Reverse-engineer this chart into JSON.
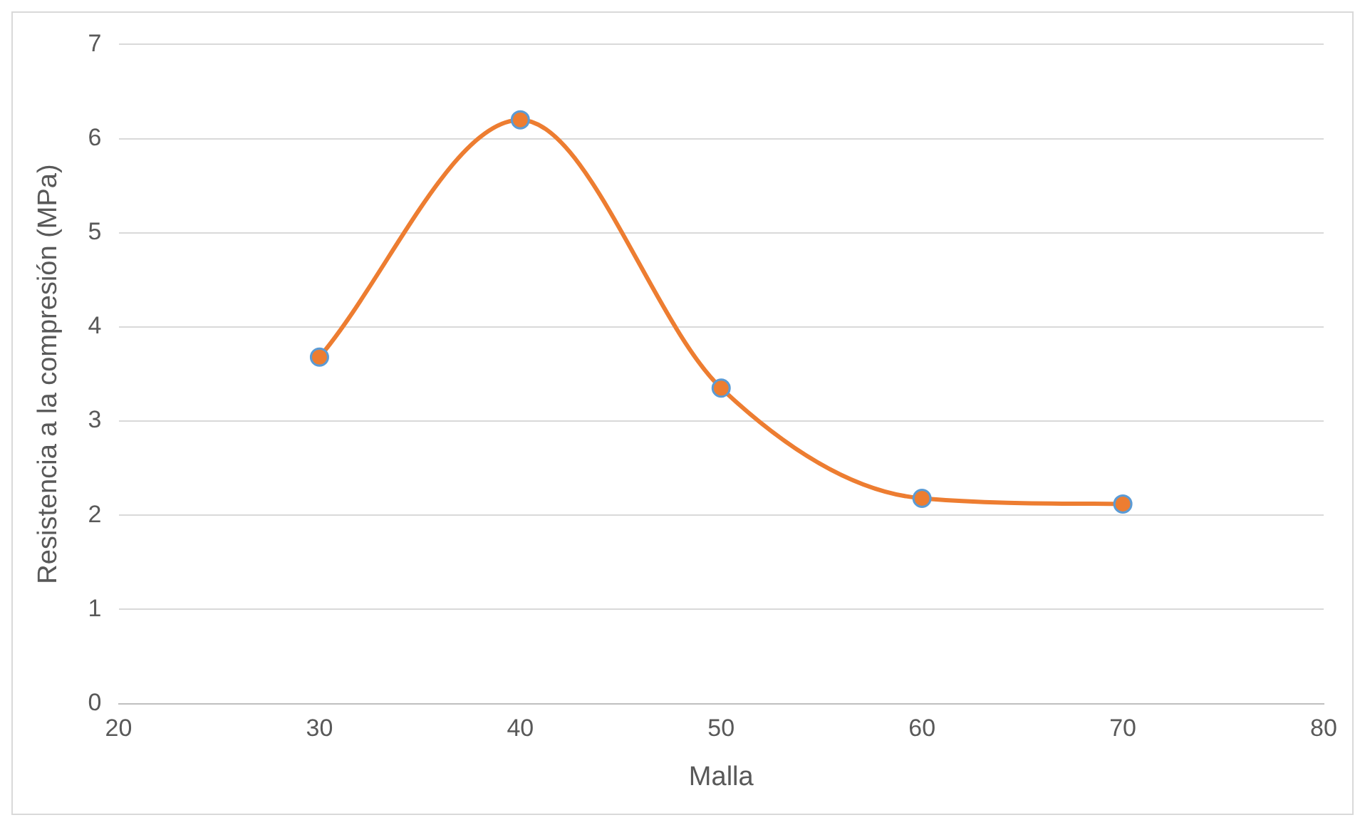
{
  "chart_data": {
    "type": "line",
    "xlabel": "Malla",
    "ylabel": "Resistencia a la compresión (MPa)",
    "x": [
      30,
      40,
      50,
      60,
      70
    ],
    "series": [
      {
        "color": "#ed7d31",
        "values": [
          3.68,
          6.2,
          3.35,
          2.18,
          2.12
        ]
      }
    ],
    "xlim": [
      20,
      80
    ],
    "xticks": [
      20,
      30,
      40,
      50,
      60,
      70,
      80
    ],
    "ylim": [
      0,
      7
    ],
    "yticks": [
      0,
      1,
      2,
      3,
      4,
      5,
      6,
      7
    ],
    "grid": "y",
    "marker": "circle",
    "line_style": "solid",
    "legend": false
  }
}
